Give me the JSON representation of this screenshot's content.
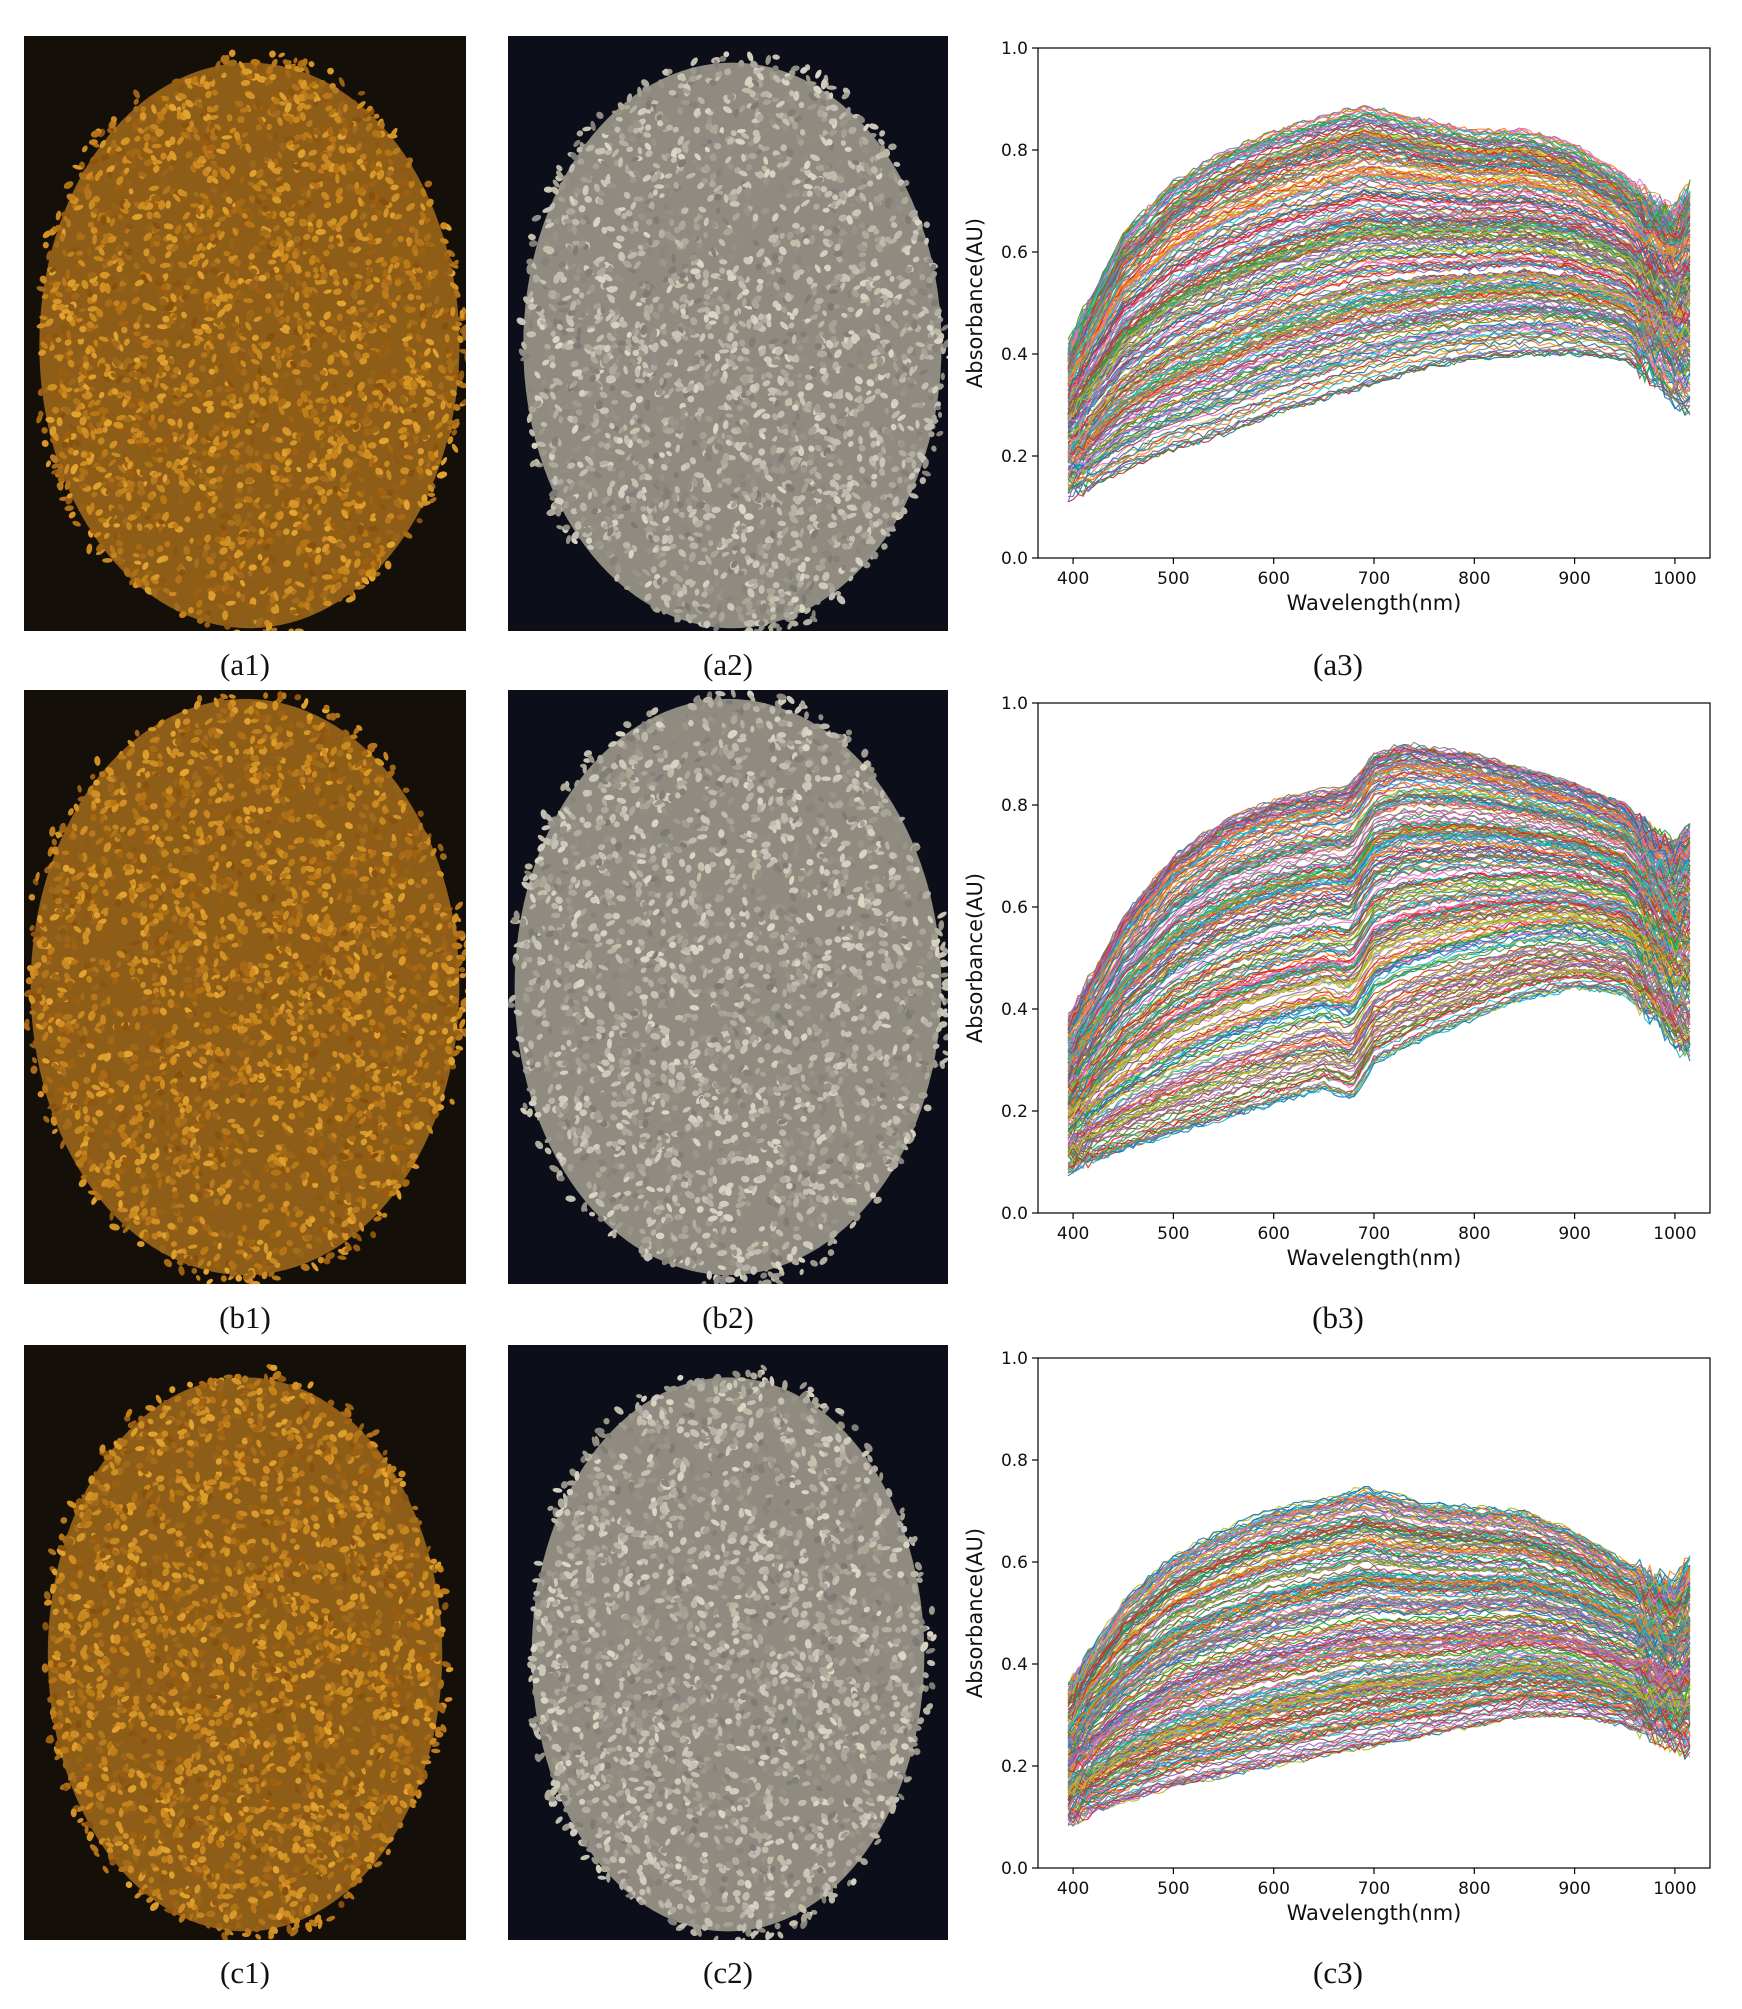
{
  "figure": {
    "rows": [
      {
        "id": "a",
        "labels": [
          "(a1)",
          "(a2)",
          "(a3)"
        ],
        "photo1": {
          "subject": "seed-pile-color",
          "tint": "#c8851c"
        },
        "photo2": {
          "subject": "seed-pile-gray",
          "tint": "#b8b2a2"
        }
      },
      {
        "id": "b",
        "labels": [
          "(b1)",
          "(b2)",
          "(b3)"
        ],
        "photo1": {
          "subject": "seed-pile-color",
          "tint": "#c8851c"
        },
        "photo2": {
          "subject": "seed-pile-gray",
          "tint": "#b8b2a2"
        }
      },
      {
        "id": "c",
        "labels": [
          "(c1)",
          "(c2)",
          "(c3)"
        ],
        "photo1": {
          "subject": "seed-pile-color",
          "tint": "#c8851c"
        },
        "photo2": {
          "subject": "seed-pile-gray",
          "tint": "#b8b2a2"
        }
      }
    ]
  },
  "chart_data": [
    {
      "type": "line",
      "panel": "a3",
      "xlabel": "Wavelength(nm)",
      "ylabel": "Absorbance(AU)",
      "xlim": [
        365,
        1035
      ],
      "ylim": [
        0.0,
        1.0
      ],
      "xticks": [
        400,
        500,
        600,
        700,
        800,
        900,
        1000
      ],
      "yticks": [
        0.0,
        0.2,
        0.4,
        0.6,
        0.8,
        1.0
      ],
      "x_range": [
        395,
        1018
      ],
      "grid": false,
      "legend": "none",
      "series_count_estimate": 400,
      "envelope_upper": {
        "x": [
          395,
          420,
          450,
          500,
          550,
          600,
          650,
          690,
          750,
          800,
          850,
          900,
          950,
          980,
          1000,
          1018
        ],
        "y": [
          0.42,
          0.52,
          0.64,
          0.74,
          0.8,
          0.84,
          0.87,
          0.89,
          0.86,
          0.84,
          0.84,
          0.81,
          0.75,
          0.7,
          0.68,
          0.74
        ]
      },
      "envelope_lower": {
        "x": [
          395,
          420,
          450,
          500,
          550,
          600,
          650,
          700,
          750,
          800,
          850,
          900,
          950,
          980,
          1000,
          1018
        ],
        "y": [
          0.12,
          0.14,
          0.17,
          0.21,
          0.24,
          0.28,
          0.31,
          0.34,
          0.37,
          0.39,
          0.4,
          0.4,
          0.39,
          0.35,
          0.31,
          0.29
        ]
      },
      "feature_at_680_nm": false
    },
    {
      "type": "line",
      "panel": "b3",
      "xlabel": "Wavelength(nm)",
      "ylabel": "Absorbance(AU)",
      "xlim": [
        365,
        1035
      ],
      "ylim": [
        0.0,
        1.0
      ],
      "xticks": [
        400,
        500,
        600,
        700,
        800,
        900,
        1000
      ],
      "yticks": [
        0.0,
        0.2,
        0.4,
        0.6,
        0.8,
        1.0
      ],
      "x_range": [
        395,
        1018
      ],
      "grid": false,
      "legend": "none",
      "series_count_estimate": 400,
      "envelope_upper": {
        "x": [
          395,
          420,
          450,
          500,
          550,
          600,
          650,
          670,
          700,
          730,
          800,
          850,
          900,
          950,
          980,
          1000,
          1018
        ],
        "y": [
          0.38,
          0.47,
          0.58,
          0.7,
          0.77,
          0.81,
          0.83,
          0.85,
          0.9,
          0.92,
          0.9,
          0.87,
          0.84,
          0.8,
          0.74,
          0.72,
          0.75
        ]
      },
      "envelope_lower": {
        "x": [
          395,
          420,
          450,
          500,
          550,
          600,
          650,
          680,
          700,
          750,
          800,
          850,
          900,
          950,
          980,
          1000,
          1018
        ],
        "y": [
          0.08,
          0.1,
          0.12,
          0.15,
          0.18,
          0.21,
          0.24,
          0.27,
          0.29,
          0.34,
          0.38,
          0.42,
          0.44,
          0.43,
          0.38,
          0.33,
          0.31
        ]
      },
      "feature_at_680_nm": true
    },
    {
      "type": "line",
      "panel": "c3",
      "xlabel": "Wavelength(nm)",
      "ylabel": "Absorbance(AU)",
      "xlim": [
        365,
        1035
      ],
      "ylim": [
        0.0,
        1.0
      ],
      "xticks": [
        400,
        500,
        600,
        700,
        800,
        900,
        1000
      ],
      "yticks": [
        0.0,
        0.2,
        0.4,
        0.6,
        0.8,
        1.0
      ],
      "x_range": [
        395,
        1018
      ],
      "grid": false,
      "legend": "none",
      "series_count_estimate": 400,
      "envelope_upper": {
        "x": [
          395,
          420,
          450,
          500,
          550,
          600,
          650,
          690,
          750,
          800,
          850,
          900,
          950,
          980,
          1000,
          1018
        ],
        "y": [
          0.36,
          0.44,
          0.53,
          0.62,
          0.67,
          0.71,
          0.73,
          0.75,
          0.72,
          0.71,
          0.7,
          0.66,
          0.6,
          0.57,
          0.56,
          0.61
        ]
      },
      "envelope_lower": {
        "x": [
          395,
          420,
          450,
          500,
          550,
          600,
          650,
          700,
          750,
          800,
          850,
          900,
          950,
          980,
          1000,
          1018
        ],
        "y": [
          0.09,
          0.11,
          0.13,
          0.16,
          0.18,
          0.2,
          0.22,
          0.24,
          0.26,
          0.28,
          0.3,
          0.3,
          0.28,
          0.26,
          0.24,
          0.23
        ]
      },
      "feature_at_680_nm": false
    }
  ],
  "palette": [
    "#1f77b4",
    "#ff7f0e",
    "#2ca02c",
    "#d62728",
    "#9467bd",
    "#8c564b",
    "#e377c2",
    "#7f7f7f",
    "#bcbd22",
    "#17becf"
  ],
  "photo_background": {
    "color_photo": "#150f09",
    "gray_photo": "#0c0f19"
  }
}
